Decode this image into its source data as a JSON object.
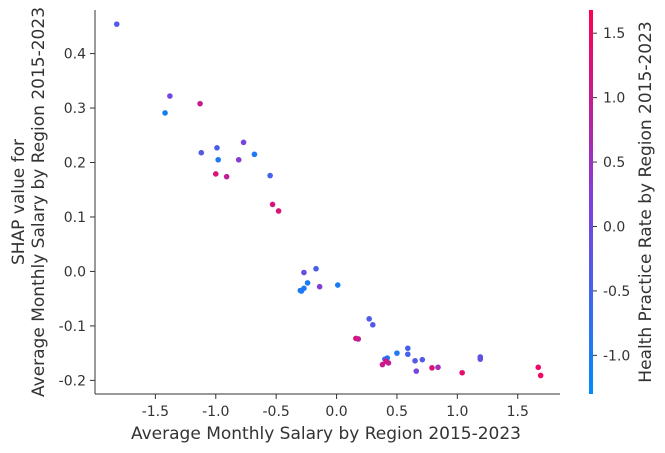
{
  "chart_data": {
    "type": "scatter",
    "xlabel": "Average Monthly Salary by Region 2015-2023",
    "ylabel_lines": [
      "SHAP value for",
      "Average Monthly Salary by Region 2015-2023"
    ],
    "colorbar_label": "Health Practice Rate by Region 2015-2023",
    "xlim": [
      -2.0,
      1.85
    ],
    "ylim": [
      -0.225,
      0.48
    ],
    "clim": [
      -1.3,
      1.68
    ],
    "x_ticks": [
      {
        "value": -1.5,
        "label": "-1.5"
      },
      {
        "value": -1.0,
        "label": "-1.0"
      },
      {
        "value": -0.5,
        "label": "-0.5"
      },
      {
        "value": 0.0,
        "label": "0.0"
      },
      {
        "value": 0.5,
        "label": "0.5"
      },
      {
        "value": 1.0,
        "label": "1.0"
      },
      {
        "value": 1.5,
        "label": "1.5"
      }
    ],
    "y_ticks": [
      {
        "value": 0.4,
        "label": "0.4"
      },
      {
        "value": 0.3,
        "label": "0.3"
      },
      {
        "value": 0.2,
        "label": "0.2"
      },
      {
        "value": 0.1,
        "label": "0.1"
      },
      {
        "value": 0.0,
        "label": "0.0"
      },
      {
        "value": -0.1,
        "label": "-0.1"
      },
      {
        "value": -0.2,
        "label": "-0.2"
      }
    ],
    "c_ticks": [
      {
        "value": 1.5,
        "label": "1.5"
      },
      {
        "value": 1.0,
        "label": "1.0"
      },
      {
        "value": 0.5,
        "label": "0.5"
      },
      {
        "value": 0.0,
        "label": "0.0"
      },
      {
        "value": -0.5,
        "label": "-0.5"
      },
      {
        "value": -1.0,
        "label": "-1.0"
      }
    ],
    "colors": {
      "low": "#008bfb",
      "mid": "#7f3fdc",
      "high": "#ff0052",
      "axis": "#333333"
    },
    "points": [
      {
        "x": -1.82,
        "y": 0.454,
        "c": -0.35
      },
      {
        "x": -1.38,
        "y": 0.322,
        "c": 0.05
      },
      {
        "x": -1.42,
        "y": 0.291,
        "c": -1.05
      },
      {
        "x": -1.13,
        "y": 0.308,
        "c": 1.0
      },
      {
        "x": -1.12,
        "y": 0.218,
        "c": -0.35
      },
      {
        "x": -0.99,
        "y": 0.227,
        "c": -0.45
      },
      {
        "x": -0.98,
        "y": 0.205,
        "c": -0.95
      },
      {
        "x": -0.77,
        "y": 0.237,
        "c": 0.1
      },
      {
        "x": -0.81,
        "y": 0.205,
        "c": 0.3
      },
      {
        "x": -0.68,
        "y": 0.215,
        "c": -0.95
      },
      {
        "x": -1.0,
        "y": 0.179,
        "c": 1.25
      },
      {
        "x": -0.91,
        "y": 0.174,
        "c": 0.95
      },
      {
        "x": -0.55,
        "y": 0.176,
        "c": -0.5
      },
      {
        "x": -0.53,
        "y": 0.123,
        "c": 1.2
      },
      {
        "x": -0.48,
        "y": 0.111,
        "c": 1.25
      },
      {
        "x": -0.27,
        "y": -0.002,
        "c": -0.1
      },
      {
        "x": -0.17,
        "y": 0.005,
        "c": -0.45
      },
      {
        "x": -0.24,
        "y": -0.021,
        "c": -1.0
      },
      {
        "x": -0.14,
        "y": -0.028,
        "c": 0.25
      },
      {
        "x": 0.01,
        "y": -0.025,
        "c": -1.0
      },
      {
        "x": -0.27,
        "y": -0.031,
        "c": -0.95
      },
      {
        "x": -0.3,
        "y": -0.035,
        "c": -1.0
      },
      {
        "x": -0.29,
        "y": -0.036,
        "c": -0.95
      },
      {
        "x": 0.27,
        "y": -0.087,
        "c": -0.4
      },
      {
        "x": 0.3,
        "y": -0.098,
        "c": -0.3
      },
      {
        "x": 0.16,
        "y": -0.123,
        "c": 1.25
      },
      {
        "x": 0.18,
        "y": -0.124,
        "c": 1.0
      },
      {
        "x": 0.59,
        "y": -0.141,
        "c": -0.45
      },
      {
        "x": 0.5,
        "y": -0.15,
        "c": -0.95
      },
      {
        "x": 0.59,
        "y": -0.152,
        "c": -0.5
      },
      {
        "x": 0.42,
        "y": -0.159,
        "c": -0.95
      },
      {
        "x": 0.4,
        "y": -0.161,
        "c": -0.5
      },
      {
        "x": 0.71,
        "y": -0.162,
        "c": -0.35
      },
      {
        "x": 0.65,
        "y": -0.164,
        "c": -0.3
      },
      {
        "x": 0.41,
        "y": -0.165,
        "c": 1.2
      },
      {
        "x": 0.43,
        "y": -0.168,
        "c": 1.0
      },
      {
        "x": 0.38,
        "y": -0.171,
        "c": 1.1
      },
      {
        "x": 0.84,
        "y": -0.176,
        "c": 0.6
      },
      {
        "x": 0.79,
        "y": -0.177,
        "c": 1.25
      },
      {
        "x": 0.66,
        "y": -0.183,
        "c": 0.1
      },
      {
        "x": 1.04,
        "y": -0.186,
        "c": 1.4
      },
      {
        "x": 1.19,
        "y": -0.157,
        "c": -0.2
      },
      {
        "x": 1.19,
        "y": -0.161,
        "c": -0.15
      },
      {
        "x": 1.67,
        "y": -0.176,
        "c": 1.45
      },
      {
        "x": 1.69,
        "y": -0.191,
        "c": 1.5
      }
    ]
  }
}
